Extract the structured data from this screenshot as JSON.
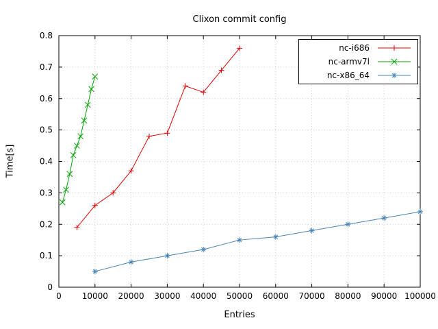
{
  "chart_data": {
    "type": "line",
    "title": "Clixon commit config",
    "xlabel": "Entries",
    "ylabel": "Time[s]",
    "xlim": [
      0,
      100000
    ],
    "ylim": [
      0,
      0.8
    ],
    "xtick_step": 10000,
    "ytick_step": 0.1,
    "grid": true,
    "legend_position": "top-right-inside",
    "series": [
      {
        "name": "nc-i686",
        "color": "#dd0000",
        "marker": "plus",
        "points": [
          [
            5000,
            0.19
          ],
          [
            10000,
            0.26
          ],
          [
            15000,
            0.3
          ],
          [
            20000,
            0.37
          ],
          [
            25000,
            0.48
          ],
          [
            30000,
            0.49
          ],
          [
            35000,
            0.64
          ],
          [
            40000,
            0.62
          ],
          [
            45000,
            0.69
          ],
          [
            50000,
            0.76
          ]
        ]
      },
      {
        "name": "nc-armv7l",
        "color": "#00a000",
        "marker": "cross",
        "points": [
          [
            1000,
            0.27
          ],
          [
            2000,
            0.31
          ],
          [
            3000,
            0.36
          ],
          [
            4000,
            0.42
          ],
          [
            5000,
            0.45
          ],
          [
            6000,
            0.48
          ],
          [
            7000,
            0.53
          ],
          [
            8000,
            0.58
          ],
          [
            9000,
            0.63
          ],
          [
            10000,
            0.67
          ]
        ]
      },
      {
        "name": "nc-x86_64",
        "color": "#4682b4",
        "marker": "star",
        "points": [
          [
            10000,
            0.05
          ],
          [
            20000,
            0.08
          ],
          [
            30000,
            0.1
          ],
          [
            40000,
            0.12
          ],
          [
            50000,
            0.15
          ],
          [
            60000,
            0.16
          ],
          [
            70000,
            0.18
          ],
          [
            80000,
            0.2
          ],
          [
            90000,
            0.22
          ],
          [
            100000,
            0.24
          ]
        ]
      }
    ]
  }
}
